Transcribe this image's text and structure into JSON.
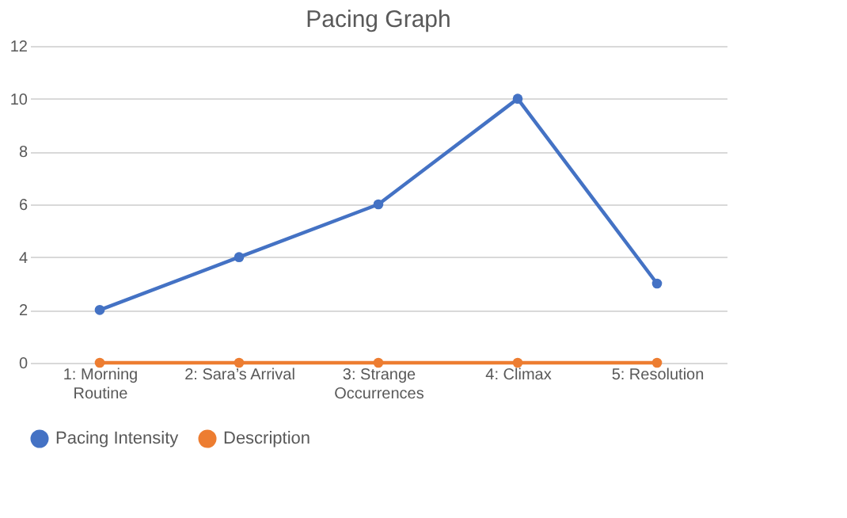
{
  "chart_data": {
    "type": "line",
    "title": "Pacing Graph",
    "categories": [
      "1: Morning Routine",
      "2: Sara’s Arrival",
      "3: Strange Occurrences",
      "4: Climax",
      "5: Resolution"
    ],
    "series": [
      {
        "name": "Pacing Intensity",
        "color": "#4472c4",
        "values": [
          2,
          4,
          6,
          10,
          3
        ]
      },
      {
        "name": "Description",
        "color": "#ed7d31",
        "values": [
          0,
          0,
          0,
          0,
          0
        ]
      }
    ],
    "ylim": [
      0,
      12
    ],
    "yticks": [
      0,
      2,
      4,
      6,
      8,
      10,
      12
    ],
    "grid": "y",
    "legend": "bottom",
    "marker": "circle",
    "line_style": "solid"
  }
}
